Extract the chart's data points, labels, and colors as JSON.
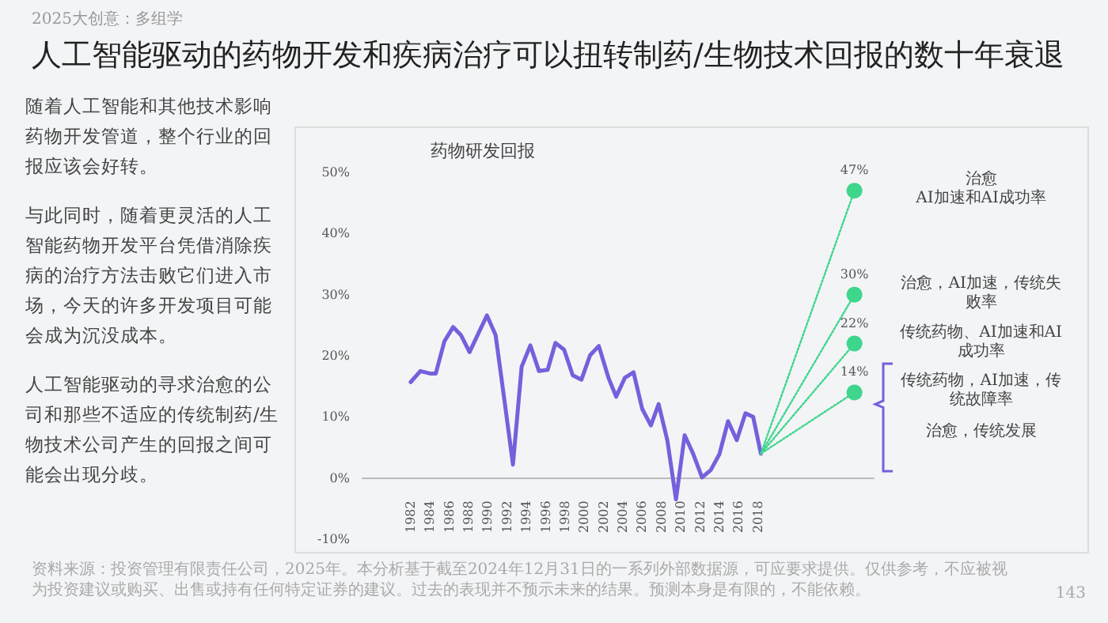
{
  "chart_data": {
    "type": "line",
    "title": "人工智能驱动的药物开发和疾病治疗可以扭转制药/生物技术回报的数十年衰退",
    "subtitle": "药物研发回报",
    "xlim": [
      1977,
      2030
    ],
    "xticks": [
      1982,
      1984,
      1986,
      1988,
      1990,
      1992,
      1994,
      1996,
      1998,
      2000,
      2002,
      2004,
      2006,
      2008,
      2010,
      2012,
      2014,
      2016,
      2018
    ],
    "ylim": [
      -10,
      50
    ],
    "yticks": [
      {
        "value": -10,
        "label": "-10%"
      },
      {
        "value": 0,
        "label": "0%"
      },
      {
        "value": 10,
        "label": "10%"
      },
      {
        "value": 20,
        "label": "20%"
      },
      {
        "value": 30,
        "label": "30%"
      },
      {
        "value": 40,
        "label": "40%"
      },
      {
        "value": 50,
        "label": "50%"
      }
    ],
    "grid": false,
    "marker": "none",
    "series": [
      {
        "color": "#7560dc",
        "x": [
          1982.0,
          1983.0,
          1984.0,
          1984.6,
          1985.5,
          1986.4,
          1987.2,
          1988.1,
          1989.0,
          1989.9,
          1990.8,
          1991.7,
          1992.6,
          1993.5,
          1994.4,
          1995.3,
          1996.2,
          1997.0,
          1997.9,
          1998.8,
          1999.7,
          2000.6,
          2001.5,
          2002.5,
          2003.3,
          2004.2,
          2005.1,
          2006.0,
          2006.9,
          2007.7,
          2008.6,
          2009.5,
          2010.4,
          2011.3,
          2012.2,
          2013.1,
          2014.0,
          2014.9,
          2015.8,
          2016.7,
          2017.5,
          2018.3
        ],
        "values": [
          15.7,
          17.5,
          17.1,
          17.1,
          22.4,
          24.7,
          23.4,
          20.6,
          23.6,
          26.6,
          23.4,
          12.9,
          2.2,
          18.2,
          21.7,
          17.5,
          17.7,
          22.1,
          21.0,
          16.8,
          16.1,
          20.1,
          21.6,
          16.4,
          13.3,
          16.4,
          17.3,
          11.3,
          8.6,
          12.1,
          6.2,
          -3.5,
          7.0,
          3.9,
          0.1,
          1.3,
          3.9,
          9.3,
          6.2,
          10.6,
          10.0,
          4.0
        ]
      },
      {
        "color": "#3ed68c",
        "line_style": "dotted",
        "x": [
          2018.3,
          2028
        ],
        "values": [
          4.0,
          47
        ]
      },
      {
        "color": "#3ed68c",
        "line_style": "dotted",
        "x": [
          2018.3,
          2028
        ],
        "values": [
          4.0,
          30
        ]
      },
      {
        "color": "#3ed68c",
        "line_style": "dotted",
        "x": [
          2018.3,
          2028
        ],
        "values": [
          4.0,
          22
        ]
      },
      {
        "color": "#3ed68c",
        "line_style": "dotted",
        "x": [
          2018.3,
          2028
        ],
        "values": [
          4.0,
          14
        ]
      },
      {
        "type": "scatter",
        "marker": "circle",
        "color": "#3ed68c",
        "x": [
          2028,
          2028,
          2028,
          2028
        ],
        "values": [
          47,
          30,
          22,
          14
        ],
        "value_labels": [
          "47%",
          "30%",
          "22%",
          "14%"
        ]
      }
    ],
    "annotations": [
      "2025大创意：多组学",
      "随着人工智能和其他技术影响药物开发管道，整个行业的回报应该会好转。",
      "与此同时，随着更灵活的人工智能药物开发平台凭借消除疾病的治疗方法击败它们进入市场，今天的许多开发项目可能会成为沉没成本。",
      "人工智能驱动的寻求治愈的公司和那些不适应的传统制药/生物技术公司产生的回报之间可能会出现分歧。",
      "资料来源：投资管理有限责任公司，2025年。本分析基于截至2024年12月31日的一系列外部数据源，可应要求提供。仅供参考，不应被视为投资建议或购买、出售或持有任何特定证券的建议。过去的表现并不预示未来的结果。预测本身是有限的，不能依赖。",
      "143",
      "治愈\nAI加速和AI成功率",
      "治愈，AI加速，传统失败率",
      "传统药物、AI加速和AI成功率",
      "传统药物，AI加速，传统故障率",
      "治愈，传统发展"
    ]
  }
}
